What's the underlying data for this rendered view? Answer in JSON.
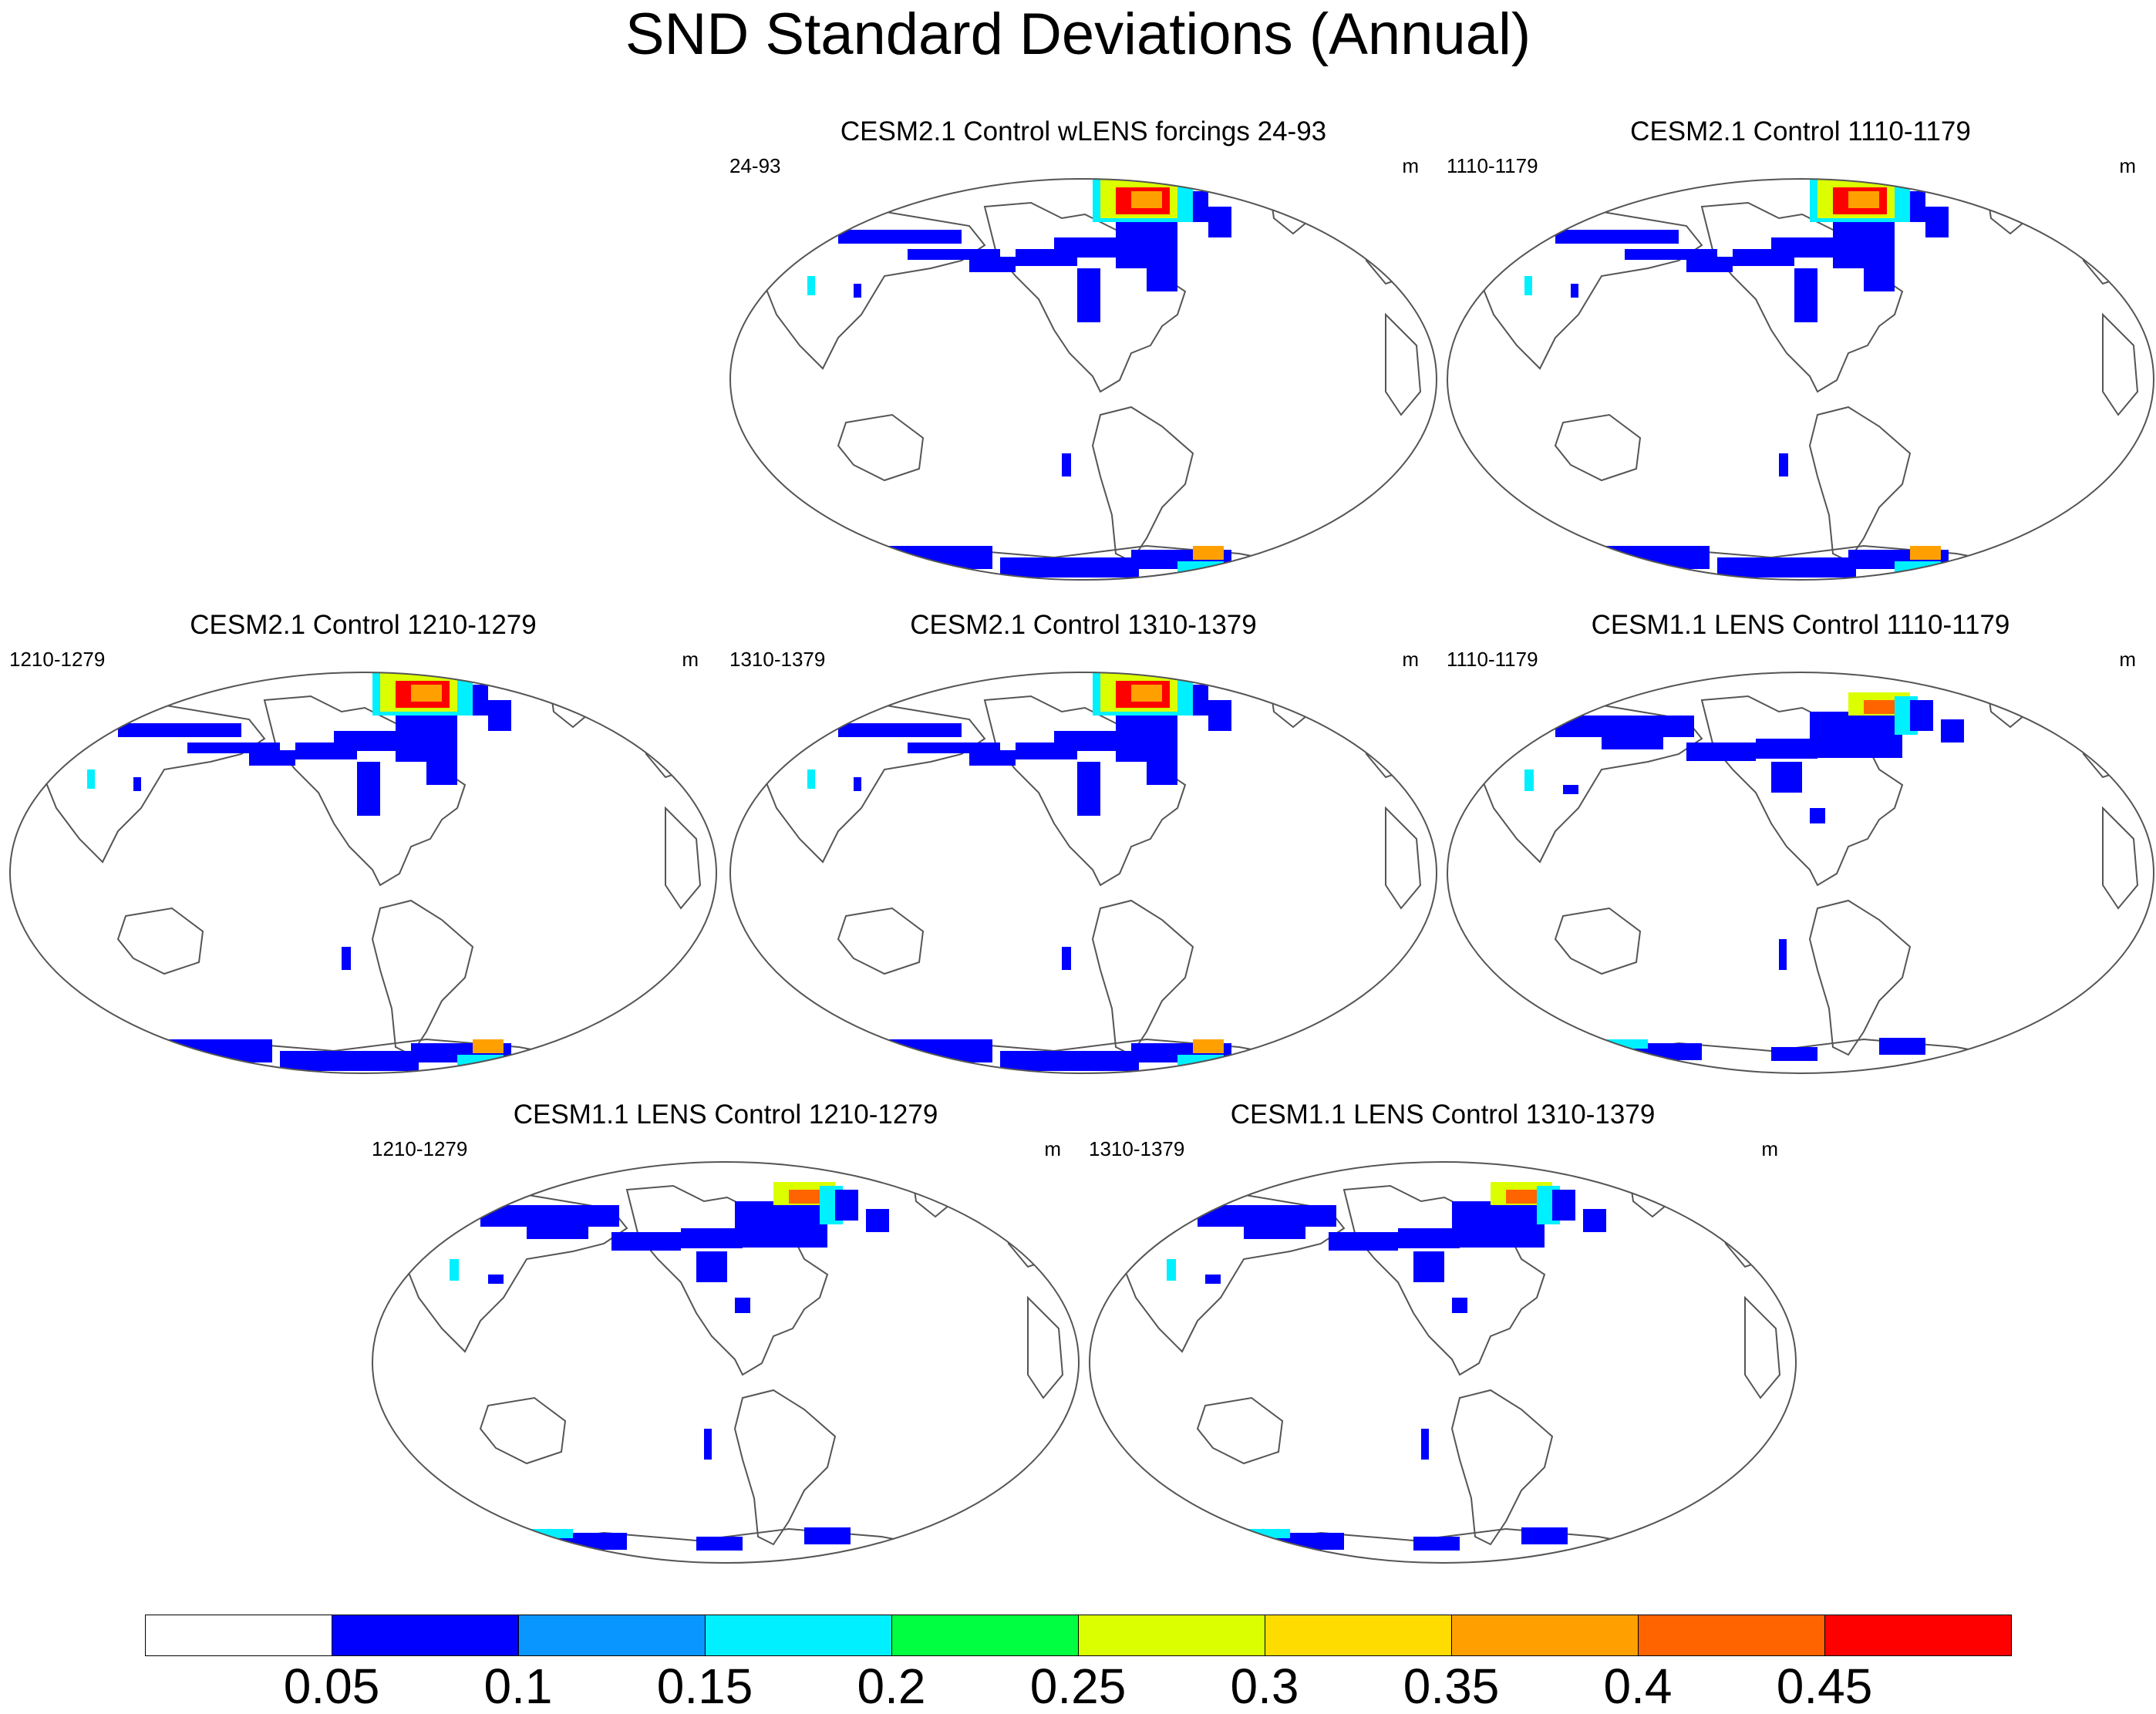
{
  "title": "SND Standard Deviations (Annual)",
  "panels": [
    {
      "title": "CESM2.1 Control wLENS forcings 24-93",
      "period": "24-93",
      "units": "m",
      "model": "cesm2"
    },
    {
      "title": "CESM2.1 Control 1110-1179",
      "period": "1110-1179",
      "units": "m",
      "model": "cesm2"
    },
    {
      "title": "CESM2.1 Control 1210-1279",
      "period": "1210-1279",
      "units": "m",
      "model": "cesm2"
    },
    {
      "title": "CESM2.1 Control 1310-1379",
      "period": "1310-1379",
      "units": "m",
      "model": "cesm2"
    },
    {
      "title": "CESM1.1 LENS Control 1110-1179",
      "period": "1110-1179",
      "units": "m",
      "model": "cesm1"
    },
    {
      "title": "CESM1.1 LENS Control 1210-1279",
      "period": "1210-1279",
      "units": "m",
      "model": "cesm1"
    },
    {
      "title": "CESM1.1 LENS Control 1310-1379",
      "period": "1310-1379",
      "units": "m",
      "model": "cesm1"
    }
  ],
  "colorbar": {
    "labels": [
      "0.05",
      "0.1",
      "0.15",
      "0.2",
      "0.25",
      "0.3",
      "0.35",
      "0.4",
      "0.45"
    ],
    "colors": [
      "#ffffff",
      "#0000ff",
      "#0a96ff",
      "#00f0ff",
      "#00ff40",
      "#dcff00",
      "#ffdc00",
      "#ffa000",
      "#ff6400",
      "#ff0000"
    ]
  }
}
